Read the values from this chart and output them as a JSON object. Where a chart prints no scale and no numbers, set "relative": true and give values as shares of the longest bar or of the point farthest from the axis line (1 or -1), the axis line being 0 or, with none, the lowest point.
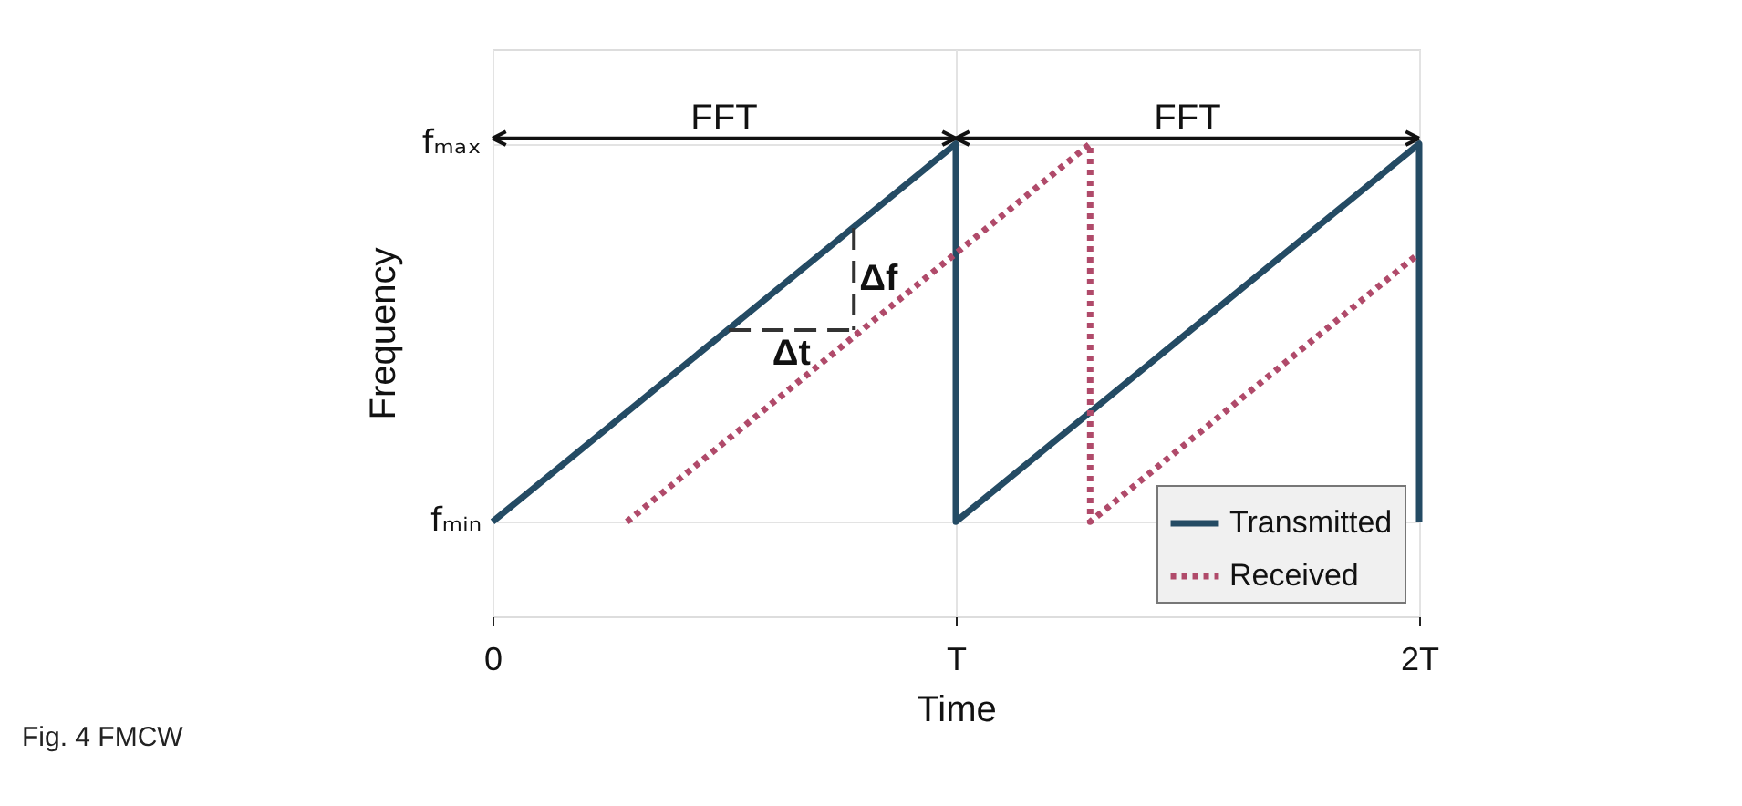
{
  "chart_data": {
    "type": "line",
    "xlabel": "Time",
    "ylabel": "Frequency",
    "xlim": [
      0,
      2
    ],
    "relative": true,
    "xticks": [
      {
        "value": 0,
        "label": "0"
      },
      {
        "value": 1,
        "label": "T"
      },
      {
        "value": 2,
        "label": "2T"
      }
    ],
    "grid": true,
    "legend": "bottom right",
    "marker": "none",
    "series": [
      {
        "name": "Transmitted",
        "color": "#244b64",
        "line_style": "solid",
        "x": [
          0,
          1,
          1,
          2,
          2
        ],
        "values": [
          0,
          1,
          0,
          1,
          0
        ]
      },
      {
        "name": "Received",
        "color": "#b04a6a",
        "line_style": "dotted",
        "x": [
          0.29,
          1.29,
          1.29,
          2
        ],
        "values": [
          0,
          1,
          0,
          0.71
        ]
      }
    ],
    "annotations": [
      "FFT",
      "FFT",
      "Δf",
      "Δt",
      "fₘᵢₙ",
      "fₘₐₓ",
      "Fig. 4 FMCW"
    ]
  }
}
